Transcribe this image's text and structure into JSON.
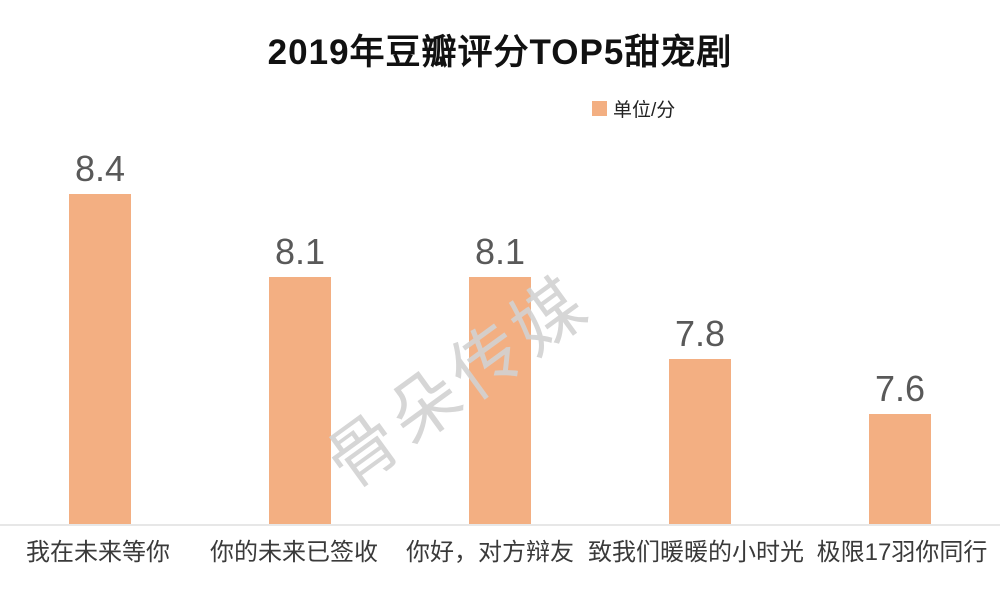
{
  "title": "2019年豆瓣评分TOP5甜宠剧",
  "legend": {
    "label": "单位/分",
    "swatch_color": "#F3AF82"
  },
  "watermark": "骨朵传媒",
  "chart_data": {
    "type": "bar",
    "title": "2019年豆瓣评分TOP5甜宠剧",
    "categories": [
      "我在未来等你",
      "你的未来已签收",
      "你好，对方辩友",
      "致我们暖暖的小时光",
      "极限17羽你同行"
    ],
    "values": [
      8.4,
      8.1,
      8.1,
      7.8,
      7.6
    ],
    "data_labels": [
      "8.4",
      "8.1",
      "8.1",
      "7.8",
      "7.6"
    ],
    "legend_entries": [
      "单位/分"
    ],
    "legend_position": "top-right",
    "bar_color": "#F3AF82",
    "value_label_color": "#595959",
    "axis_line_color": "#e7e7e7",
    "ylim": [
      7.2,
      8.6
    ],
    "grid": false,
    "xlabel": "",
    "ylabel": ""
  }
}
